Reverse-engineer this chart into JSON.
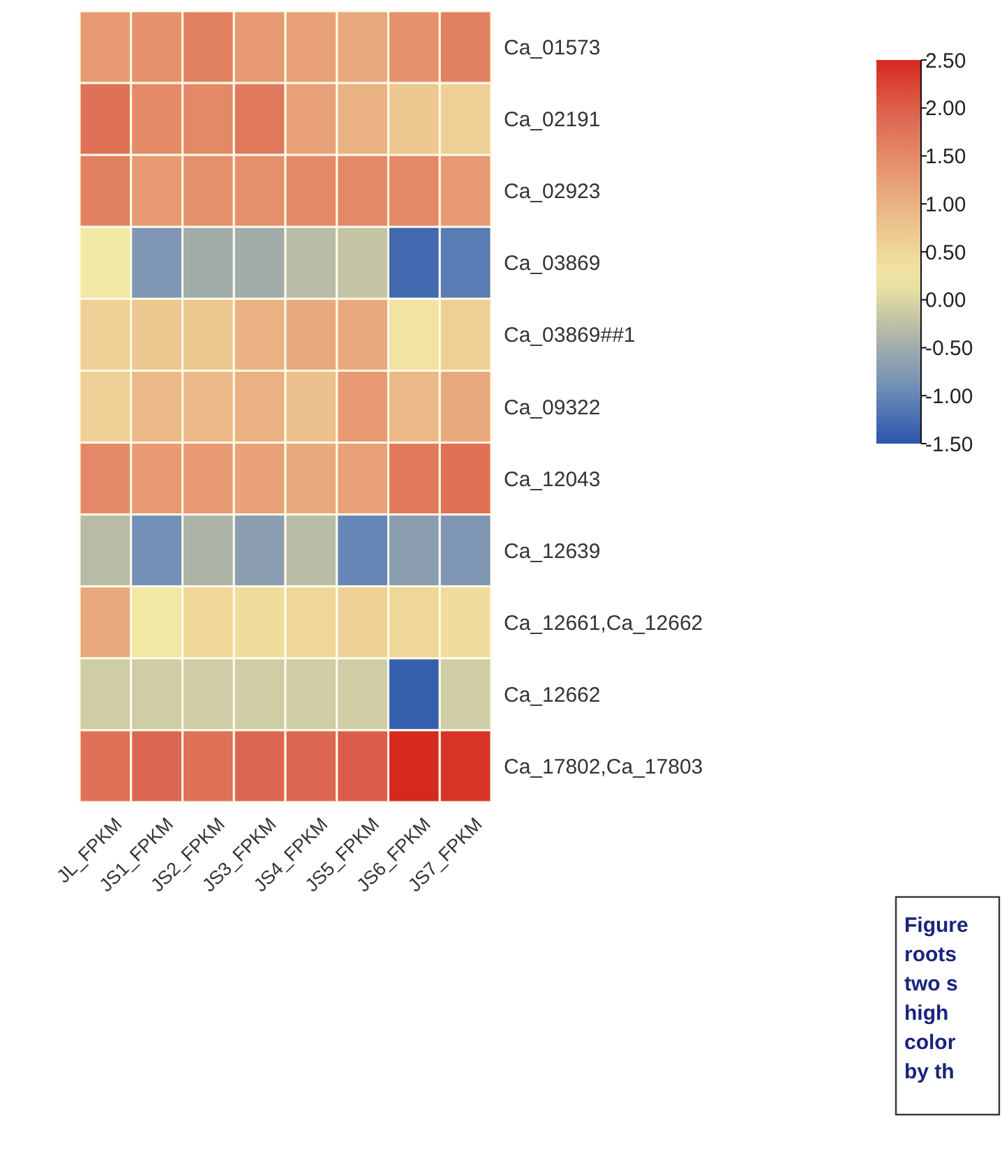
{
  "chart_data": {
    "type": "heatmap",
    "categories": [
      "JL_FPKM",
      "JS1_FPKM",
      "JS2_FPKM",
      "JS3_FPKM",
      "JS4_FPKM",
      "JS5_FPKM",
      "JS6_FPKM",
      "JS7_FPKM"
    ],
    "y_categories": [
      "Ca_01573",
      "Ca_02191",
      "Ca_02923",
      "Ca_03869",
      "Ca_03869##1",
      "Ca_09322",
      "Ca_12043",
      "Ca_12639",
      "Ca_12661,Ca_12662",
      "Ca_12662",
      "Ca_17802,Ca_17803"
    ],
    "cells": [
      [
        1.3,
        1.4,
        1.6,
        1.3,
        1.2,
        1.1,
        1.4,
        1.6
      ],
      [
        1.8,
        1.5,
        1.5,
        1.7,
        1.2,
        1.0,
        0.7,
        0.6
      ],
      [
        1.6,
        1.3,
        1.4,
        1.4,
        1.5,
        1.5,
        1.5,
        1.3
      ],
      [
        0.2,
        -0.8,
        -0.5,
        -0.5,
        -0.3,
        -0.2,
        -1.3,
        -1.1
      ],
      [
        0.6,
        0.7,
        0.7,
        1.0,
        1.1,
        1.1,
        0.3,
        0.6
      ],
      [
        0.6,
        0.9,
        0.9,
        1.0,
        0.8,
        1.3,
        0.9,
        1.1
      ],
      [
        1.5,
        1.3,
        1.3,
        1.2,
        1.1,
        1.2,
        1.7,
        1.8
      ],
      [
        -0.3,
        -0.9,
        -0.4,
        -0.7,
        -0.3,
        -1.0,
        -0.7,
        -0.8
      ],
      [
        1.1,
        0.2,
        0.5,
        0.4,
        0.5,
        0.6,
        0.5,
        0.4
      ],
      [
        -0.1,
        -0.1,
        -0.1,
        -0.1,
        -0.1,
        -0.1,
        -1.4,
        -0.1
      ],
      [
        1.8,
        1.9,
        1.8,
        1.9,
        1.9,
        2.0,
        2.5,
        2.4
      ]
    ],
    "clim": [
      -1.5,
      2.5
    ],
    "cticks": [
      {
        "value": 2.5,
        "label": "2.50"
      },
      {
        "value": 2,
        "label": "2.00"
      },
      {
        "value": 1.5,
        "label": "1.50"
      },
      {
        "value": 1,
        "label": "1.00"
      },
      {
        "value": 0.5,
        "label": "0.50"
      },
      {
        "value": 0,
        "label": "0.00"
      },
      {
        "value": -0.5,
        "label": "-0.50"
      },
      {
        "value": -1,
        "label": "-1.00"
      },
      {
        "value": -1.5,
        "label": "-1.50"
      }
    ],
    "annotations": [
      "Figure\nroots\ntwo s\nhigh\ncolor\nby th"
    ]
  }
}
